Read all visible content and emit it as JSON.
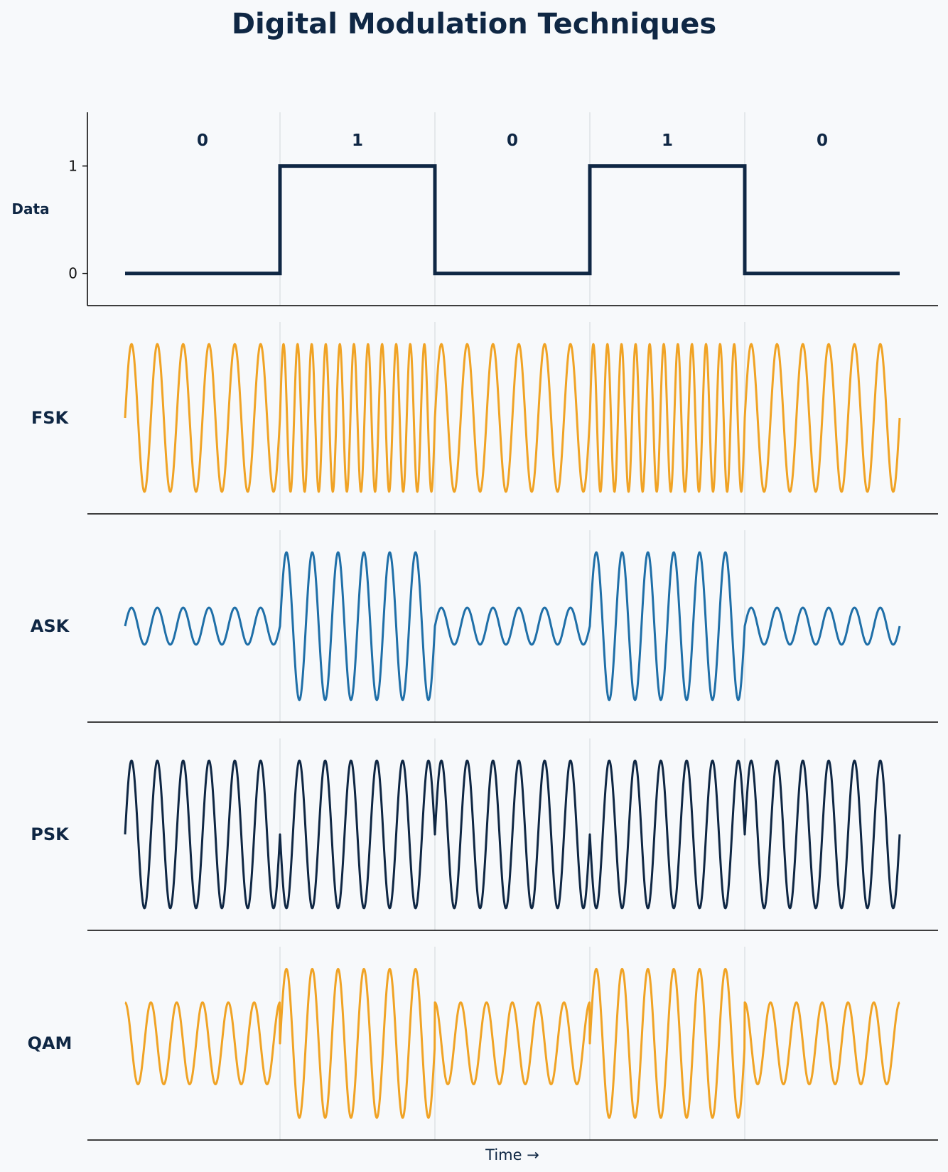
{
  "title": "Digital Modulation Techniques",
  "colors": {
    "background": "#f7f9fb",
    "navy": "#0f2744",
    "orange": "#f0a325",
    "blue": "#1f6fa8",
    "grid": "#dde2e6"
  },
  "chart_data": {
    "type": "line",
    "title": "Digital Modulation Techniques",
    "xlabel": "Time →",
    "bits": [
      "0",
      "1",
      "0",
      "1",
      "0"
    ],
    "panels": [
      {
        "id": "data",
        "label": "Data",
        "kind": "square",
        "yticks": [
          "0",
          "1"
        ],
        "ylim": [
          -0.3,
          1.5
        ],
        "color": "navy"
      },
      {
        "id": "fsk",
        "label": "FSK",
        "kind": "fsk",
        "cycles_per_bit_0": 6,
        "cycles_per_bit_1": 11,
        "ylim": [
          -1.3,
          1.3
        ],
        "color": "orange"
      },
      {
        "id": "ask",
        "label": "ASK",
        "kind": "ask",
        "cycles_per_bit": 6,
        "amplitude_bit_0": 0.25,
        "amplitude_bit_1": 1.0,
        "ylim": [
          -1.3,
          1.3
        ],
        "color": "blue"
      },
      {
        "id": "psk",
        "label": "PSK",
        "kind": "psk",
        "cycles_per_bit": 6,
        "phase_bit_0": 0,
        "phase_bit_1": 180,
        "ylim": [
          -1.3,
          1.3
        ],
        "color": "navy"
      },
      {
        "id": "qam",
        "label": "QAM",
        "kind": "qam",
        "cycles_per_bit": 6,
        "amplitude_bit_0": 0.55,
        "amplitude_bit_1": 1.0,
        "phase_bit_0": 90,
        "phase_bit_1": 0,
        "ylim": [
          -1.3,
          1.3
        ],
        "color": "orange"
      }
    ]
  }
}
